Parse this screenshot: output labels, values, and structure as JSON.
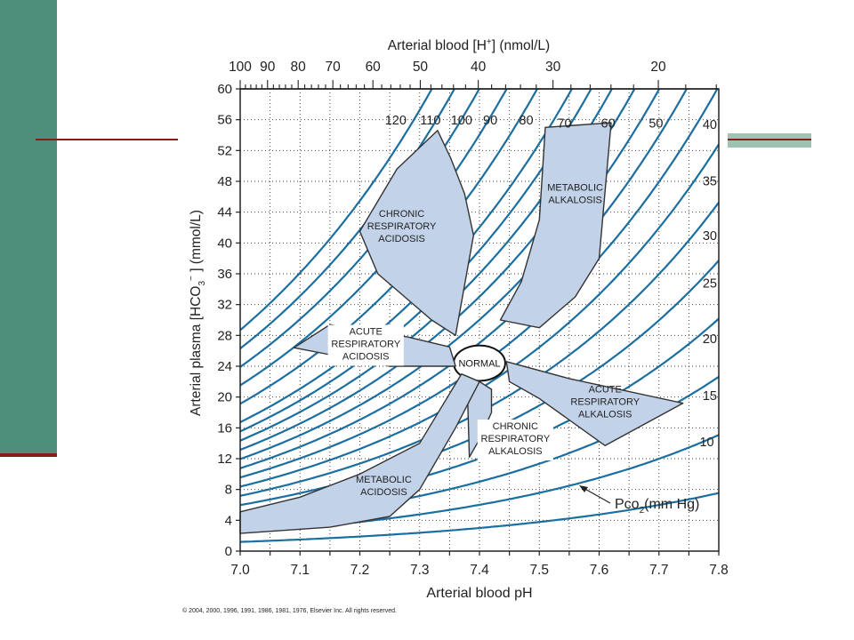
{
  "theme": {
    "accent_green": "#4e8f7c",
    "accent_red": "#8b1a1a",
    "light_green": "#9fc2b4",
    "isobar_color": "#1b6fa0",
    "region_fill": "#c2d2e8",
    "region_stroke": "#333333"
  },
  "chart_data": {
    "type": "line",
    "title": "",
    "xlabel": "Arterial blood pH",
    "ylabel": "Arterial plasma [HCO₃⁻] (mmol/L)",
    "ylabel_parts": {
      "pre": "Arterial plasma [HCO",
      "sub": "3",
      "sup": "−",
      "post": " ] (mmol/L)"
    },
    "x2label": "Arterial blood [H⁺] (nmol/L)",
    "x2label_parts": {
      "pre": "Arterial blood [H",
      "sup": "+",
      "post": "] (nmol/L)"
    },
    "xlim": [
      7.0,
      7.8
    ],
    "ylim": [
      0,
      60
    ],
    "grid": true,
    "x_ticks": [
      7.0,
      7.05,
      7.1,
      7.15,
      7.2,
      7.25,
      7.3,
      7.35,
      7.4,
      7.45,
      7.5,
      7.55,
      7.6,
      7.65,
      7.7,
      7.75,
      7.8
    ],
    "x_tick_labels": [
      "7.0",
      "7.1",
      "7.2",
      "7.3",
      "7.4",
      "7.5",
      "7.6",
      "7.7",
      "7.8"
    ],
    "y_ticks": [
      0,
      4,
      8,
      12,
      16,
      20,
      24,
      28,
      32,
      36,
      40,
      44,
      48,
      52,
      56,
      60
    ],
    "y_tick_labels": [
      "0",
      "4",
      "8",
      "12",
      "16",
      "20",
      "24",
      "28",
      "32",
      "36",
      "40",
      "44",
      "48",
      "52",
      "56",
      "60"
    ],
    "top_axis": {
      "h_values": [
        100,
        90,
        80,
        70,
        60,
        50,
        40,
        30,
        20
      ],
      "labels": [
        "100",
        "90",
        "80",
        "70",
        "60",
        "50",
        "40",
        "30",
        "20"
      ]
    },
    "isobar_label": "Pco₂(mm Hg)",
    "isobar_label_parts": {
      "pre": "Pco",
      "sub": "2",
      "post": "(mm Hg)"
    },
    "series": [
      {
        "name": "120",
        "pco2": 120
      },
      {
        "name": "110",
        "pco2": 110
      },
      {
        "name": "100",
        "pco2": 100
      },
      {
        "name": "90",
        "pco2": 90
      },
      {
        "name": "80",
        "pco2": 80
      },
      {
        "name": "70",
        "pco2": 70
      },
      {
        "name": "60",
        "pco2": 60
      },
      {
        "name": "50",
        "pco2": 50
      },
      {
        "name": "40",
        "pco2": 40
      },
      {
        "name": "35",
        "pco2": 35
      },
      {
        "name": "30",
        "pco2": 30
      },
      {
        "name": "25",
        "pco2": 25
      },
      {
        "name": "20",
        "pco2": 20
      },
      {
        "name": "15",
        "pco2": 15
      },
      {
        "name": "10",
        "pco2": 10
      }
    ],
    "extra_isobars": [
      {
        "pco2": 65
      },
      {
        "pco2": 55
      },
      {
        "pco2": 45
      },
      {
        "pco2": 5
      }
    ],
    "isobar_labels": [
      {
        "text": "120",
        "x": 7.26,
        "y": 55.4
      },
      {
        "text": "110",
        "x": 7.318,
        "y": 55.4
      },
      {
        "text": "100",
        "x": 7.37,
        "y": 55.4
      },
      {
        "text": "90",
        "x": 7.418,
        "y": 55.4
      },
      {
        "text": "80",
        "x": 7.478,
        "y": 55.4
      },
      {
        "text": "70",
        "x": 7.542,
        "y": 55.0
      },
      {
        "text": "60",
        "x": 7.615,
        "y": 55.0
      },
      {
        "text": "50",
        "x": 7.695,
        "y": 55.0
      },
      {
        "text": "40",
        "x": 7.785,
        "y": 54.8
      },
      {
        "text": "35",
        "x": 7.785,
        "y": 47.5
      },
      {
        "text": "30",
        "x": 7.785,
        "y": 40.4
      },
      {
        "text": "25",
        "x": 7.785,
        "y": 34.2
      },
      {
        "text": "20",
        "x": 7.785,
        "y": 27.0
      },
      {
        "text": "15",
        "x": 7.785,
        "y": 19.6
      },
      {
        "text": "10",
        "x": 7.78,
        "y": 13.6
      }
    ],
    "regions": [
      {
        "name": "NORMAL",
        "type": "ellipse",
        "center": [
          7.4,
          24.4
        ],
        "rx": 0.043,
        "ry": 2.3
      },
      {
        "name": "CHRONIC RESPIRATORY ACIDOSIS",
        "label": [
          "CHRONIC",
          "RESPIRATORY",
          "ACIDOSIS"
        ],
        "label_at": [
          7.27,
          43.4
        ],
        "points": [
          [
            7.2,
            41.5
          ],
          [
            7.262,
            49.6
          ],
          [
            7.33,
            54.6
          ],
          [
            7.352,
            51.0
          ],
          [
            7.375,
            46.4
          ],
          [
            7.39,
            41.0
          ],
          [
            7.36,
            28.0
          ],
          [
            7.32,
            30.0
          ],
          [
            7.23,
            36.0
          ]
        ]
      },
      {
        "name": "METABOLIC ALKALOSIS",
        "label": [
          "METABOLIC",
          "ALKALOSIS"
        ],
        "label_at": [
          7.56,
          46.8
        ],
        "points": [
          [
            7.51,
            55.0
          ],
          [
            7.62,
            55.6
          ],
          [
            7.6,
            38.0
          ],
          [
            7.56,
            33.0
          ],
          [
            7.5,
            29.0
          ],
          [
            7.435,
            30.0
          ],
          [
            7.47,
            35.0
          ],
          [
            7.5,
            43.0
          ]
        ]
      },
      {
        "name": "ACUTE RESPIRATORY ACIDOSIS",
        "label": [
          "ACUTE",
          "RESPIRATORY",
          "ACIDOSIS"
        ],
        "label_at": [
          7.21,
          28.1
        ],
        "points": [
          [
            7.09,
            26.4
          ],
          [
            7.15,
            29.4
          ],
          [
            7.28,
            27.8
          ],
          [
            7.35,
            26.5
          ],
          [
            7.36,
            24.0
          ],
          [
            7.25,
            24.0
          ],
          [
            7.15,
            25.5
          ]
        ]
      },
      {
        "name": "ACUTE RESPIRATORY ALKALOSIS",
        "label": [
          "ACUTE",
          "RESPIRATORY",
          "ALKALOSIS"
        ],
        "label_at": [
          7.61,
          20.6
        ],
        "points": [
          [
            7.445,
            24.6
          ],
          [
            7.55,
            22.4
          ],
          [
            7.74,
            19.2
          ],
          [
            7.61,
            13.7
          ],
          [
            7.5,
            19.8
          ],
          [
            7.45,
            22.0
          ]
        ]
      },
      {
        "name": "CHRONIC RESPIRATORY ALKALOSIS",
        "label": [
          "CHRONIC",
          "RESPIRATORY",
          "ALKALOSIS"
        ],
        "label_at": [
          7.46,
          15.8
        ],
        "points": [
          [
            7.38,
            20.5
          ],
          [
            7.383,
            12.2
          ],
          [
            7.4,
            14.5
          ],
          [
            7.42,
            18.0
          ],
          [
            7.42,
            21.0
          ],
          [
            7.4,
            22.0
          ]
        ]
      },
      {
        "name": "METABOLIC ACIDOSIS",
        "label": [
          "METABOLIC",
          "ACIDOSIS"
        ],
        "label_at": [
          7.24,
          8.9
        ],
        "points": [
          [
            7.0,
            5.1
          ],
          [
            7.1,
            7.0
          ],
          [
            7.2,
            10.0
          ],
          [
            7.3,
            14.0
          ],
          [
            7.37,
            23.0
          ],
          [
            7.4,
            22.0
          ],
          [
            7.36,
            16.0
          ],
          [
            7.3,
            8.0
          ],
          [
            7.25,
            4.5
          ],
          [
            7.15,
            3.1
          ],
          [
            7.0,
            2.3
          ]
        ]
      }
    ]
  },
  "copyright": "© 2004, 2000, 1996, 1991, 1986, 1981, 1976, Elsevier Inc. All rights reserved."
}
